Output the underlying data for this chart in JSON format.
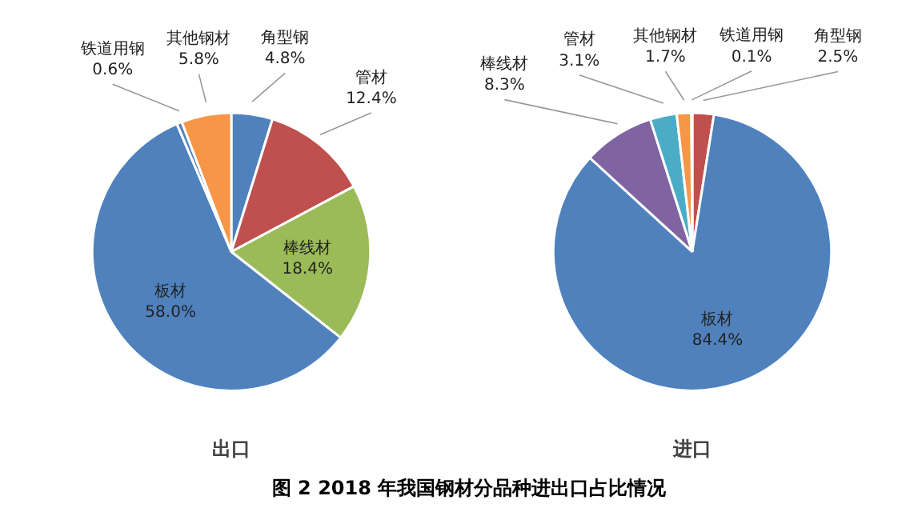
{
  "chart_data": [
    {
      "type": "pie",
      "title": "出口",
      "categories": [
        "角型钢",
        "管材",
        "棒线材",
        "板材",
        "铁道用钢",
        "其他钢材"
      ],
      "values": [
        4.8,
        12.4,
        18.4,
        58.0,
        0.6,
        5.8
      ],
      "colors": [
        "#4f81bd",
        "#c0504d",
        "#9bbb59",
        "#4f81bd",
        "#4f81bd",
        "#f79646"
      ],
      "value_labels": [
        "4.8%",
        "12.4%",
        "18.4%",
        "58.0%",
        "0.6%",
        "5.8%"
      ],
      "annotations": [
        "图 2 2018 年我国钢材分品种进出口占比情况"
      ]
    },
    {
      "type": "pie",
      "title": "进口",
      "categories": [
        "角型钢",
        "板材",
        "棒线材",
        "管材",
        "其他钢材",
        "铁道用钢"
      ],
      "values": [
        2.5,
        84.4,
        8.3,
        3.1,
        1.7,
        0.1
      ],
      "colors": [
        "#c0504d",
        "#4f81bd",
        "#8064a2",
        "#4bacc6",
        "#f79646",
        "#4f81bd"
      ],
      "value_labels": [
        "2.5%",
        "84.4%",
        "8.3%",
        "3.1%",
        "1.7%",
        "0.1%"
      ]
    }
  ]
}
